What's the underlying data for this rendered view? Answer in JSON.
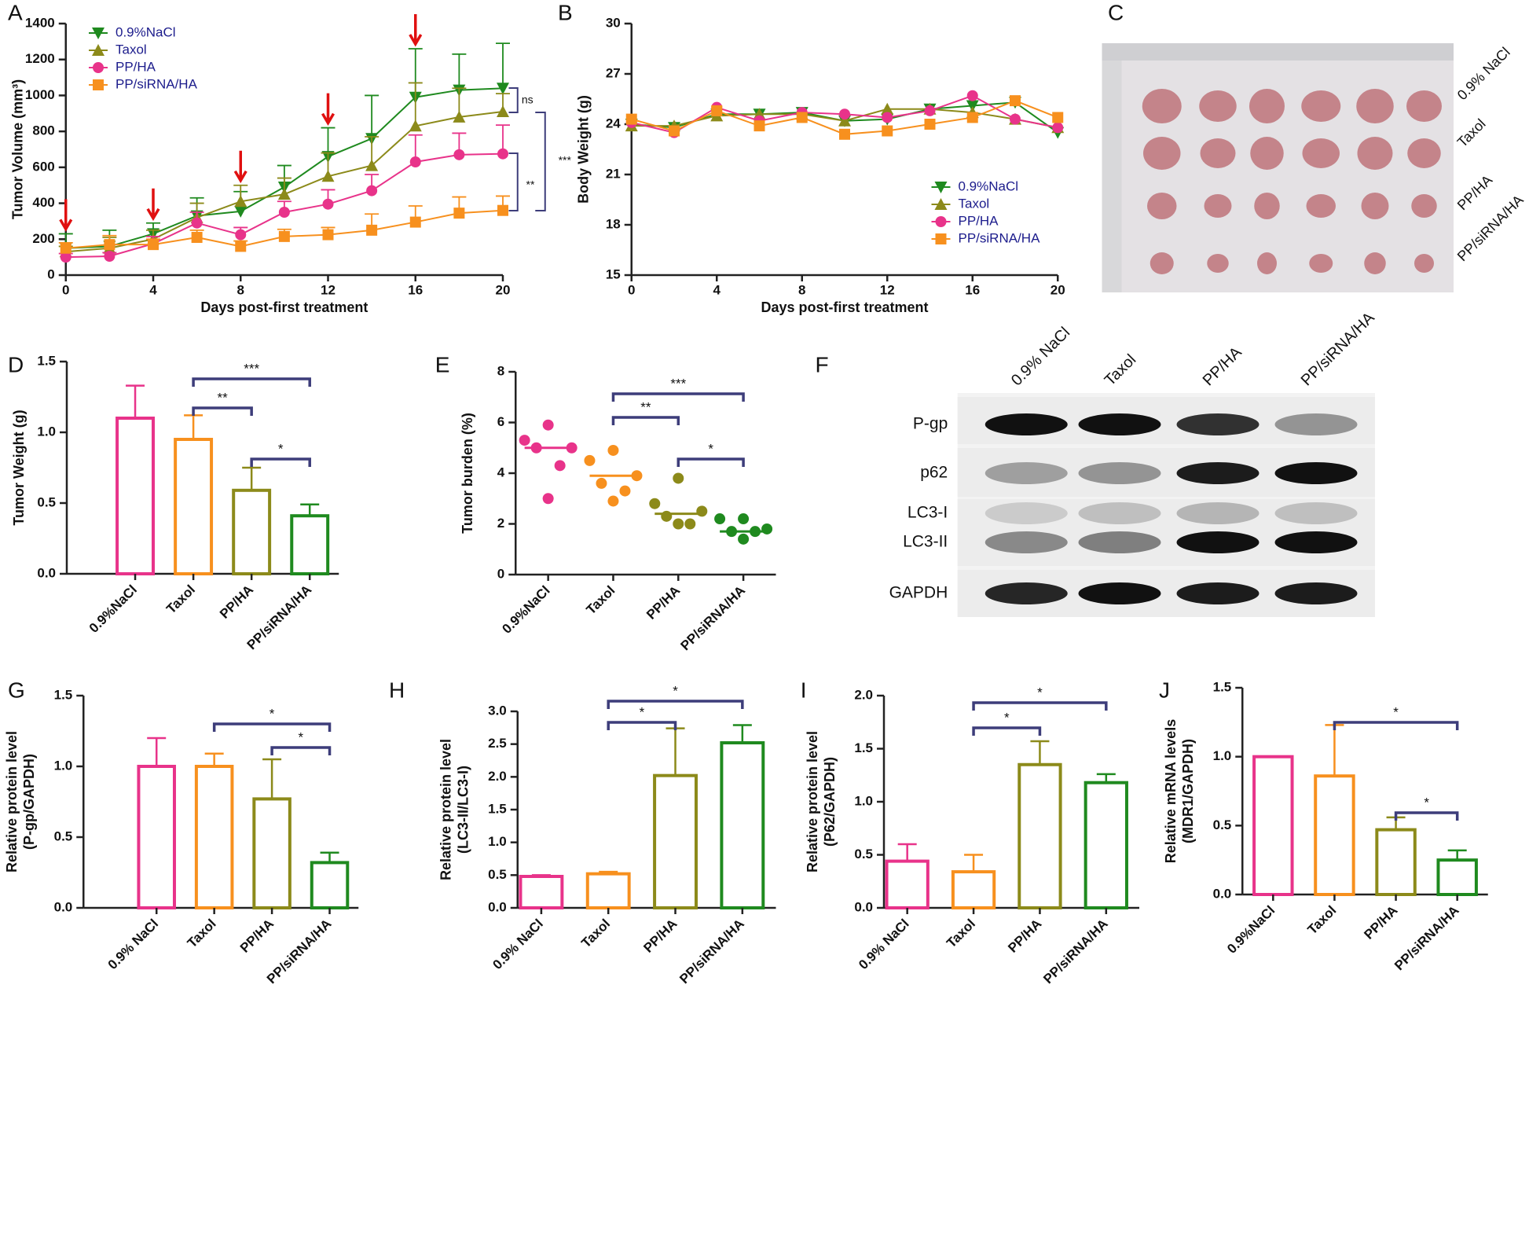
{
  "chart_data": [
    {
      "type": "line",
      "label": "A",
      "ylabel": "Tumor Volume (mm³)",
      "xlabel": "Days post-first treatment",
      "x": [
        0,
        2,
        4,
        6,
        8,
        10,
        12,
        14,
        16,
        18,
        20
      ],
      "xlim": [
        0,
        20
      ],
      "xticks": [
        0,
        4,
        8,
        12,
        16,
        20
      ],
      "ylim": [
        0,
        1400
      ],
      "yticks": [
        0,
        200,
        400,
        600,
        800,
        1000,
        1200,
        1400
      ],
      "series": [
        {
          "name": "0.9%NaCl",
          "color": "#1f8a1f",
          "marker": "down",
          "values": [
            150,
            160,
            230,
            330,
            355,
            490,
            660,
            760,
            990,
            1030,
            1040
          ],
          "errors": [
            80,
            90,
            60,
            100,
            110,
            120,
            160,
            240,
            270,
            200,
            250
          ]
        },
        {
          "name": "Taxol",
          "color": "#8c8a1a",
          "marker": "up",
          "values": [
            130,
            150,
            200,
            320,
            410,
            450,
            550,
            610,
            830,
            880,
            910
          ],
          "errors": [
            30,
            60,
            50,
            80,
            90,
            90,
            130,
            160,
            240,
            160,
            100
          ]
        },
        {
          "name": "PP/HA",
          "color": "#e8338a",
          "marker": "circle",
          "values": [
            100,
            105,
            175,
            290,
            225,
            350,
            395,
            470,
            630,
            670,
            675
          ],
          "errors": [
            20,
            20,
            40,
            60,
            40,
            60,
            80,
            90,
            150,
            120,
            160
          ]
        },
        {
          "name": "PP/siRNA/HA",
          "color": "#f7901e",
          "marker": "square",
          "values": [
            150,
            170,
            170,
            210,
            160,
            215,
            225,
            250,
            295,
            345,
            360
          ],
          "errors": [
            30,
            50,
            30,
            40,
            30,
            40,
            40,
            90,
            90,
            90,
            80
          ]
        }
      ],
      "arrows": [
        0,
        4,
        8,
        12,
        16
      ],
      "annotations": [
        "ns",
        "***",
        "**"
      ]
    },
    {
      "type": "line",
      "label": "B",
      "ylabel": "Body Weight (g)",
      "xlabel": "Days post-first treatment",
      "x": [
        0,
        2,
        4,
        6,
        8,
        10,
        12,
        14,
        16,
        18,
        20
      ],
      "xlim": [
        0,
        20
      ],
      "xticks": [
        0,
        4,
        8,
        12,
        16,
        20
      ],
      "ylim": [
        15,
        30
      ],
      "yticks": [
        15,
        18,
        21,
        24,
        27,
        30
      ],
      "series": [
        {
          "name": "0.9%NaCl",
          "color": "#1f8a1f",
          "marker": "down",
          "values": [
            24.0,
            23.8,
            24.6,
            24.6,
            24.7,
            24.2,
            24.3,
            24.9,
            25.1,
            25.3,
            23.5
          ]
        },
        {
          "name": "Taxol",
          "color": "#8c8a1a",
          "marker": "up",
          "values": [
            23.9,
            23.9,
            24.5,
            24.6,
            24.6,
            24.2,
            24.9,
            24.9,
            24.7,
            24.3,
            23.8
          ]
        },
        {
          "name": "PP/HA",
          "color": "#e8338a",
          "marker": "circle",
          "values": [
            24.1,
            23.5,
            25.0,
            24.2,
            24.7,
            24.6,
            24.4,
            24.8,
            25.7,
            24.3,
            23.8
          ]
        },
        {
          "name": "PP/siRNA/HA",
          "color": "#f7901e",
          "marker": "square",
          "values": [
            24.3,
            23.6,
            24.8,
            23.9,
            24.4,
            23.4,
            23.6,
            24.0,
            24.4,
            25.4,
            24.4
          ]
        }
      ]
    },
    {
      "type": "image",
      "label": "C",
      "row_labels": [
        "0.9% NaCl",
        "Taxol",
        "PP/HA",
        "PP/siRNA/HA"
      ]
    },
    {
      "type": "bar",
      "label": "D",
      "ylabel": "Tumor Weight (g)",
      "categories": [
        "0.9%NaCl",
        "Taxol",
        "PP/HA",
        "PP/siRNA/HA"
      ],
      "values": [
        1.1,
        0.95,
        0.59,
        0.41
      ],
      "errors": [
        0.23,
        0.17,
        0.16,
        0.08
      ],
      "colors": [
        "#e8338a",
        "#f7901e",
        "#8c8a1a",
        "#1f8a1f"
      ],
      "ylim": [
        0,
        1.5
      ],
      "yticks": [
        {
          "value": 0,
          "label": "0.0"
        },
        0.5,
        {
          "value": 1,
          "label": "1.0"
        },
        1.5
      ],
      "annotations": [
        "***",
        "**",
        "*"
      ]
    },
    {
      "type": "dot",
      "label": "E",
      "ylabel": "Tumor burden (%)",
      "categories": [
        "0.9%NaCl",
        "Taxol",
        "PP/HA",
        "PP/siRNA/HA"
      ],
      "points": [
        [
          5.9,
          5.3,
          5.0,
          5.0,
          4.3,
          3.0
        ],
        [
          4.9,
          4.5,
          3.9,
          3.6,
          3.3,
          2.9
        ],
        [
          3.8,
          2.8,
          2.5,
          2.3,
          2.0,
          2.0
        ],
        [
          2.2,
          2.2,
          1.8,
          1.7,
          1.7,
          1.4
        ]
      ],
      "means": [
        5.0,
        3.9,
        2.4,
        1.7
      ],
      "colors": [
        "#e8338a",
        "#f7901e",
        "#8c8a1a",
        "#1f8a1f"
      ],
      "ylim": [
        0,
        8
      ],
      "yticks": [
        0,
        2,
        4,
        6,
        8
      ],
      "annotations": [
        "***",
        "**",
        "*"
      ]
    },
    {
      "type": "image",
      "label": "F",
      "lane_labels": [
        "0.9% NaCl",
        "Taxol",
        "PP/HA",
        "PP/siRNA/HA"
      ],
      "row_labels": [
        "P-gp",
        "p62",
        "LC3-I",
        "LC3-II",
        "GAPDH"
      ]
    },
    {
      "type": "bar",
      "label": "G",
      "ylabel": [
        "Relative protein level",
        "(P-gp/GAPDH)"
      ],
      "categories": [
        "0.9% NaCl",
        "Taxol",
        "PP/HA",
        "PP/siRNA/HA"
      ],
      "values": [
        1.0,
        1.0,
        0.77,
        0.32
      ],
      "errors": [
        0.2,
        0.09,
        0.28,
        0.07
      ],
      "colors": [
        "#e8338a",
        "#f7901e",
        "#8c8a1a",
        "#1f8a1f"
      ],
      "ylim": [
        0,
        1.5
      ],
      "yticks": [
        {
          "value": 0,
          "label": "0.0"
        },
        0.5,
        {
          "value": 1,
          "label": "1.0"
        },
        1.5
      ],
      "annotations": [
        "*",
        "*"
      ]
    },
    {
      "type": "bar",
      "label": "H",
      "ylabel": [
        "Relative protein level",
        "(LC3-II/LC3-I)"
      ],
      "categories": [
        "0.9% NaCl",
        "Taxol",
        "PP/HA",
        "PP/siRNA/HA"
      ],
      "values": [
        0.48,
        0.52,
        2.02,
        2.52
      ],
      "errors": [
        0.02,
        0.03,
        0.72,
        0.27
      ],
      "colors": [
        "#e8338a",
        "#f7901e",
        "#8c8a1a",
        "#1f8a1f"
      ],
      "ylim": [
        0,
        3
      ],
      "yticks": [
        {
          "value": 0,
          "label": "0.0"
        },
        0.5,
        {
          "value": 1,
          "label": "1.0"
        },
        1.5,
        {
          "value": 2,
          "label": "2.0"
        },
        2.5,
        {
          "value": 3,
          "label": "3.0"
        }
      ],
      "annotations": [
        "*",
        "*"
      ]
    },
    {
      "type": "bar",
      "label": "I",
      "ylabel": [
        "Relative protein level",
        "(P62/GAPDH)"
      ],
      "categories": [
        "0.9% NaCl",
        "Taxol",
        "PP/HA",
        "PP/siRNA/HA"
      ],
      "values": [
        0.44,
        0.34,
        1.35,
        1.18
      ],
      "errors": [
        0.16,
        0.16,
        0.22,
        0.08
      ],
      "colors": [
        "#e8338a",
        "#f7901e",
        "#8c8a1a",
        "#1f8a1f"
      ],
      "ylim": [
        0,
        2
      ],
      "yticks": [
        {
          "value": 0,
          "label": "0.0"
        },
        0.5,
        {
          "value": 1,
          "label": "1.0"
        },
        1.5,
        {
          "value": 2,
          "label": "2.0"
        }
      ],
      "annotations": [
        "*",
        "*"
      ]
    },
    {
      "type": "bar",
      "label": "J",
      "ylabel": [
        "Relative mRNA levels",
        "(MDR1/GAPDH)"
      ],
      "categories": [
        "0.9%NaCl",
        "Taxol",
        "PP/HA",
        "PP/siRNA/HA"
      ],
      "values": [
        1.0,
        0.86,
        0.47,
        0.25
      ],
      "errors": [
        0,
        0.37,
        0.09,
        0.07
      ],
      "colors": [
        "#e8338a",
        "#f7901e",
        "#8c8a1a",
        "#1f8a1f"
      ],
      "ylim": [
        0,
        1.5
      ],
      "yticks": [
        {
          "value": 0,
          "label": "0.0"
        },
        0.5,
        {
          "value": 1,
          "label": "1.0"
        },
        1.5
      ],
      "annotations": [
        "*",
        "*"
      ]
    }
  ]
}
